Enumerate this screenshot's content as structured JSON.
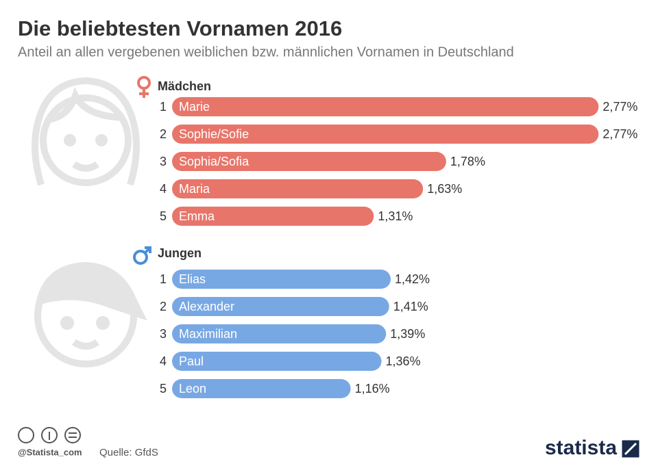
{
  "title": "Die beliebtesten Vornamen 2016",
  "subtitle": "Anteil an allen vergebenen weiblichen bzw. männlichen Vornamen in Deutschland",
  "chart_data": [
    {
      "type": "bar",
      "orientation": "horizontal",
      "title": "Mädchen",
      "ranks": [
        "1",
        "2",
        "3",
        "4",
        "5"
      ],
      "categories": [
        "Marie",
        "Sophie/Sofie",
        "Sophia/Sofia",
        "Maria",
        "Emma"
      ],
      "values": [
        2.77,
        2.77,
        1.78,
        1.63,
        1.31
      ],
      "value_labels": [
        "2,77%",
        "2,77%",
        "1,78%",
        "1,63%",
        "1,31%"
      ],
      "color": "#e8756a",
      "xlim": [
        0,
        3
      ]
    },
    {
      "type": "bar",
      "orientation": "horizontal",
      "title": "Jungen",
      "ranks": [
        "1",
        "2",
        "3",
        "4",
        "5"
      ],
      "categories": [
        "Elias",
        "Alexander",
        "Maximilian",
        "Paul",
        "Leon"
      ],
      "values": [
        1.42,
        1.41,
        1.39,
        1.36,
        1.16
      ],
      "value_labels": [
        "1,42%",
        "1,41%",
        "1,39%",
        "1,36%",
        "1,16%"
      ],
      "color": "#78a8e4",
      "xlim": [
        0,
        3
      ]
    }
  ],
  "footer": {
    "handle": "@Statista_com",
    "source": "Quelle: GfdS",
    "brand": "statista"
  }
}
